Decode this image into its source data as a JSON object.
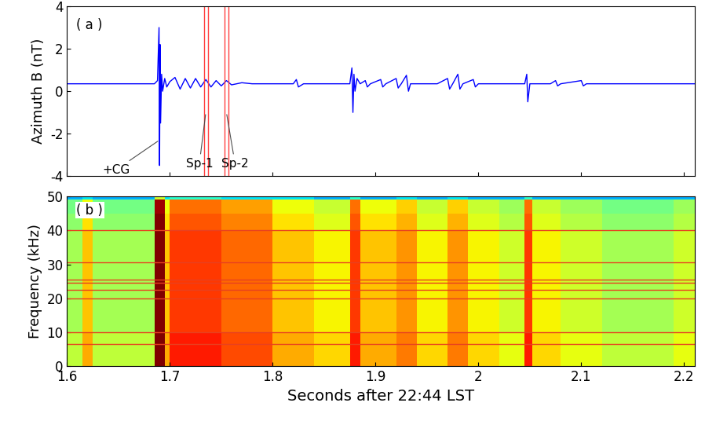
{
  "chart_data": [
    {
      "type": "line",
      "label": "( a )",
      "ylabel": "Azimuth B (nT)",
      "color": "#0000ff",
      "x": [
        1.6,
        1.685,
        1.688,
        1.6895,
        1.69,
        1.6905,
        1.691,
        1.692,
        1.693,
        1.695,
        1.697,
        1.7,
        1.705,
        1.71,
        1.715,
        1.72,
        1.725,
        1.73,
        1.735,
        1.74,
        1.745,
        1.75,
        1.755,
        1.76,
        1.77,
        1.78,
        1.82,
        1.823,
        1.825,
        1.83,
        1.875,
        1.877,
        1.878,
        1.879,
        1.88,
        1.882,
        1.885,
        1.89,
        1.892,
        1.895,
        1.905,
        1.907,
        1.91,
        1.92,
        1.922,
        1.925,
        1.93,
        1.932,
        1.934,
        1.96,
        1.97,
        1.972,
        1.975,
        1.98,
        1.982,
        1.985,
        1.995,
        1.997,
        2.0,
        2.045,
        2.047,
        2.048,
        2.05,
        2.07,
        2.075,
        2.077,
        2.08,
        2.1,
        2.102,
        2.105,
        2.15,
        2.21
      ],
      "values": [
        0.35,
        0.35,
        0.5,
        3.0,
        -3.5,
        2.2,
        -1.5,
        0.8,
        0.0,
        0.6,
        0.2,
        0.45,
        0.65,
        0.1,
        0.6,
        0.15,
        0.6,
        0.2,
        0.55,
        0.2,
        0.5,
        0.25,
        0.5,
        0.3,
        0.4,
        0.35,
        0.35,
        0.55,
        0.2,
        0.35,
        0.35,
        1.1,
        -1.0,
        0.8,
        0.0,
        0.6,
        0.35,
        0.5,
        0.2,
        0.35,
        0.55,
        0.2,
        0.35,
        0.6,
        0.15,
        0.35,
        0.75,
        0.0,
        0.35,
        0.35,
        0.6,
        0.1,
        0.35,
        0.8,
        0.1,
        0.35,
        0.55,
        0.2,
        0.35,
        0.35,
        0.8,
        -0.5,
        0.35,
        0.35,
        0.5,
        0.25,
        0.35,
        0.5,
        0.25,
        0.35,
        0.35,
        0.35
      ],
      "xlim": [
        1.6,
        2.21
      ],
      "xticks": [
        1.6,
        1.7,
        1.8,
        1.9,
        2,
        2.1,
        2.2
      ],
      "ylim": [
        -4,
        4
      ],
      "yticks": [
        -4,
        -2,
        0,
        2,
        4
      ],
      "tick_labels": "y",
      "windows": [
        {
          "name": "Sp-1",
          "start": 1.733,
          "end": 1.737,
          "color": "#ff4040"
        },
        {
          "name": "Sp-2",
          "start": 1.753,
          "end": 1.757,
          "color": "#ff4040"
        }
      ],
      "annotations": [
        {
          "text": "+CG",
          "x": 1.69,
          "y": -2.3
        },
        {
          "text": "Sp-1",
          "x": 1.735,
          "y": -1.0
        },
        {
          "text": "Sp-2",
          "x": 1.755,
          "y": -1.0
        }
      ]
    },
    {
      "type": "heatmap",
      "label": "( b )",
      "ylabel": "Frequency (kHz)",
      "xlabel": "Seconds after 22:44 LST",
      "xlim": [
        1.6,
        2.21
      ],
      "xticks": [
        1.6,
        1.7,
        1.8,
        1.9,
        2,
        2.1,
        2.2
      ],
      "ylim": [
        0,
        50
      ],
      "yticks": [
        0,
        10,
        20,
        30,
        40,
        50
      ],
      "time_edges": [
        1.6,
        1.615,
        1.625,
        1.685,
        1.695,
        1.7,
        1.75,
        1.8,
        1.84,
        1.875,
        1.885,
        1.92,
        1.94,
        1.97,
        1.99,
        2.02,
        2.045,
        2.052,
        2.08,
        2.12,
        2.19,
        2.21
      ],
      "freq_edges": [
        0,
        5,
        10,
        15,
        20,
        25,
        30,
        35,
        40,
        45,
        49,
        50
      ],
      "clim": [
        0,
        10
      ],
      "cells": [
        [
          5.8,
          7.3,
          5.8,
          10,
          7.3,
          8.8,
          8.3,
          7.3,
          6.8,
          8.8,
          7.3,
          7.8,
          6.8,
          7.8,
          6.8,
          6.3,
          8.8,
          6.8,
          6.3,
          5.8,
          6.3
        ],
        [
          5.8,
          7.3,
          5.8,
          10,
          7.3,
          8.8,
          8.3,
          7.3,
          6.8,
          8.8,
          7.3,
          7.8,
          6.8,
          7.8,
          6.8,
          6.3,
          8.8,
          6.8,
          6.3,
          5.8,
          6.3
        ],
        [
          5.5,
          7,
          5.5,
          10,
          7,
          8.5,
          8,
          7,
          6.5,
          8.5,
          7,
          7.5,
          6.5,
          7.5,
          6.5,
          6,
          8.5,
          6.5,
          6,
          5.5,
          6
        ],
        [
          5.5,
          7,
          5.5,
          10,
          7,
          8.5,
          8,
          7,
          6.5,
          8.5,
          7,
          7.5,
          6.5,
          7.5,
          6.5,
          6,
          8.5,
          6.5,
          6,
          5.5,
          6
        ],
        [
          5.5,
          7,
          5.5,
          10,
          7,
          8.5,
          8,
          7,
          6.5,
          8.5,
          7,
          7.5,
          6.5,
          7.5,
          6.5,
          6,
          8.5,
          6.5,
          6,
          5.5,
          6
        ],
        [
          5.5,
          7,
          5.5,
          10,
          7,
          8.5,
          8,
          7,
          6.5,
          8.5,
          7,
          7.5,
          6.5,
          7.5,
          6.5,
          6,
          8.5,
          6.5,
          6,
          5.5,
          6
        ],
        [
          5.5,
          7,
          5.5,
          10,
          7,
          8.5,
          8,
          7,
          6.5,
          8.5,
          7,
          7.5,
          6.5,
          7.5,
          6.5,
          6,
          8.5,
          6.5,
          6,
          5.5,
          6
        ],
        [
          5.5,
          7,
          5.5,
          10,
          7,
          8.5,
          8,
          7,
          6.5,
          8.5,
          7,
          7.5,
          6.5,
          7.5,
          6.5,
          6,
          8.5,
          6.5,
          6,
          5.5,
          6
        ],
        [
          5.2,
          6.7,
          5.2,
          10,
          6.7,
          8.2,
          7.7,
          6.7,
          6.2,
          8.2,
          6.7,
          7.2,
          6.2,
          7.2,
          6.2,
          5.7,
          8.2,
          6.2,
          5.7,
          5.2,
          5.7
        ],
        [
          4.9,
          6.4,
          4.9,
          9.7,
          6.4,
          7.9,
          7.4,
          6.4,
          5.9,
          7.9,
          6.4,
          6.9,
          5.9,
          6.9,
          5.9,
          5.4,
          7.9,
          5.9,
          5.4,
          4.9,
          5.4
        ],
        [
          3,
          3.5,
          3,
          6,
          3.5,
          4,
          3.5,
          3.5,
          3,
          4,
          3,
          3.5,
          3,
          3.5,
          3,
          3,
          4,
          3,
          3,
          3,
          3
        ]
      ],
      "narrowband_khz": [
        6.5,
        10,
        20,
        22.5,
        24.5,
        25.5,
        30.5,
        40
      ],
      "color": "#e84020"
    }
  ]
}
